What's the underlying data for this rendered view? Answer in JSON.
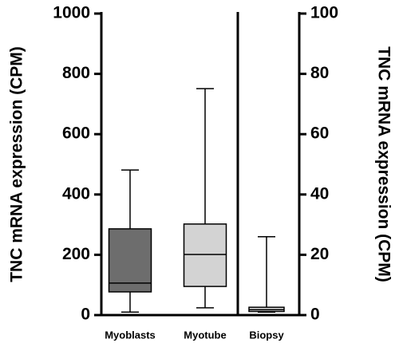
{
  "chart_data": {
    "type": "box",
    "ylabel": "TNC mRNA expression (CPM)",
    "y2label": "TNC mRNA expression (CPM)",
    "categories": [
      "Myoblasts",
      "Myotube",
      "Biopsy"
    ],
    "boxes": [
      {
        "axis": "y",
        "color": "#6d6d6d",
        "min": 10,
        "q1": 77,
        "median": 106,
        "q3": 286,
        "max": 481
      },
      {
        "axis": "y",
        "color": "#d3d3d3",
        "min": 24,
        "q1": 95,
        "median": 201,
        "q3": 302,
        "max": 751
      },
      {
        "axis": "y2",
        "color": "#d9d9d9",
        "min": 1,
        "q1": 1.2,
        "median": 1.8,
        "q3": 2.6,
        "max": 26
      }
    ],
    "ylim": [
      0,
      1000
    ],
    "yticks": [
      0,
      200,
      400,
      600,
      800,
      1000
    ],
    "y2lim": [
      0,
      100
    ],
    "y2ticks": [
      0,
      20,
      40,
      60,
      80,
      100
    ]
  }
}
